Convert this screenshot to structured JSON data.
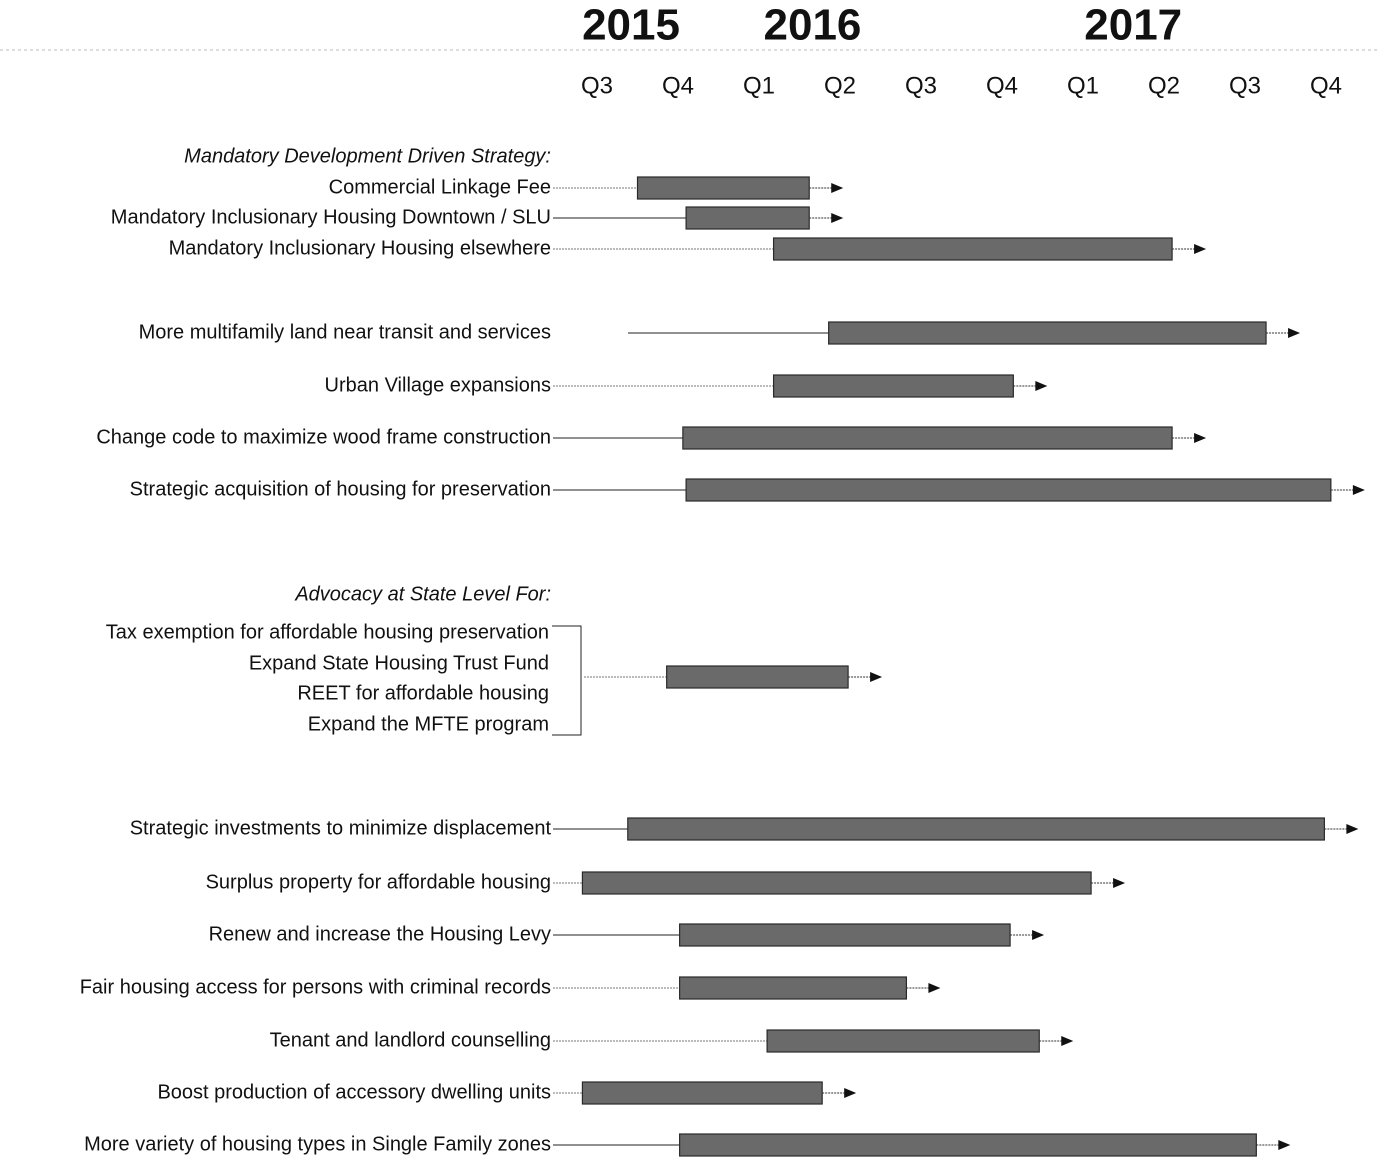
{
  "chart_data": {
    "type": "gantt",
    "xlim": [
      2015.5,
      2018.0
    ],
    "year_labels": [
      {
        "value": 2015.73,
        "label": "2015"
      },
      {
        "value": 2016.29,
        "label": "2016"
      },
      {
        "value": 2017.28,
        "label": "2017"
      }
    ],
    "xticks": [
      {
        "value": 2015.625,
        "label": "Q3"
      },
      {
        "value": 2015.875,
        "label": "Q4"
      },
      {
        "value": 2016.125,
        "label": "Q1"
      },
      {
        "value": 2016.375,
        "label": "Q2"
      },
      {
        "value": 2016.625,
        "label": "Q3"
      },
      {
        "value": 2016.875,
        "label": "Q4"
      },
      {
        "value": 2017.125,
        "label": "Q1"
      },
      {
        "value": 2017.375,
        "label": "Q2"
      },
      {
        "value": 2017.625,
        "label": "Q3"
      },
      {
        "value": 2017.875,
        "label": "Q4"
      }
    ],
    "group_headers": [
      "Mandatory Development Driven Strategy:",
      "Advocacy at State Level For:"
    ],
    "tasks": [
      {
        "label": "Commercial Linkage Fee",
        "start": 2015.75,
        "end": 2016.28
      },
      {
        "label": "Mandatory Inclusionary Housing Downtown / SLU",
        "start": 2015.9,
        "end": 2016.28
      },
      {
        "label": "Mandatory Inclusionary Housing elsewhere",
        "start": 2016.17,
        "end": 2017.4
      },
      {
        "label": "More multifamily land near transit and services",
        "start": 2016.34,
        "end": 2017.69
      },
      {
        "label": "Urban Village expansions",
        "start": 2016.17,
        "end": 2016.91
      },
      {
        "label": "Change code to maximize wood frame construction",
        "start": 2015.89,
        "end": 2017.4
      },
      {
        "label": "Strategic acquisition of housing for preservation",
        "start": 2015.9,
        "end": 2017.89
      },
      {
        "label": "Strategic investments to minimize displacement",
        "start": 2015.72,
        "end": 2017.87
      },
      {
        "label": "Surplus property for affordable housing",
        "start": 2015.58,
        "end": 2017.15
      },
      {
        "label": "Renew and increase the Housing Levy",
        "start": 2015.88,
        "end": 2016.9
      },
      {
        "label": "Fair housing access for persons with criminal records",
        "start": 2015.88,
        "end": 2016.58
      },
      {
        "label": "Tenant and landlord counselling",
        "start": 2016.15,
        "end": 2016.99
      },
      {
        "label": "Boost production of accessory dwelling units",
        "start": 2015.58,
        "end": 2016.32
      },
      {
        "label": "More variety of housing types in Single Family zones",
        "start": 2015.88,
        "end": 2017.66
      }
    ],
    "advocacy": {
      "items": [
        "Tax exemption for affordable housing preservation",
        "Expand State Housing Trust Fund",
        "REET for affordable housing",
        "Expand the MFTE program"
      ],
      "start": 2015.84,
      "end": 2016.4
    }
  }
}
